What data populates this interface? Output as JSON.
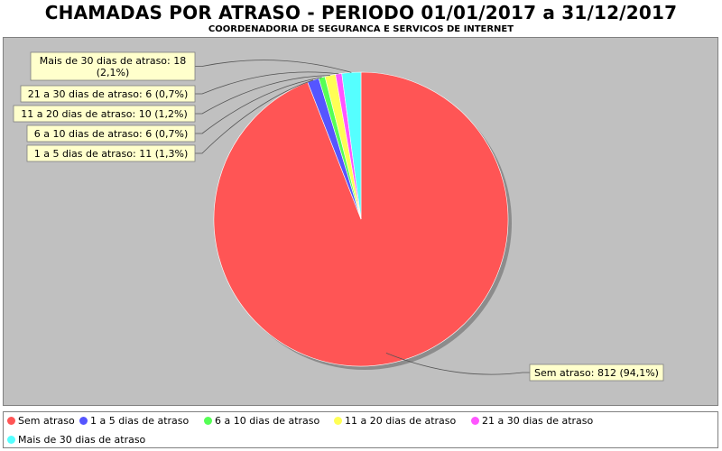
{
  "chart_data": {
    "type": "pie",
    "title": "CHAMADAS POR ATRASO - PERIODO 01/01/2017 a 31/12/2017",
    "subtitle": "COORDENADORIA DE SEGURANCA E SERVICOS DE INTERNET",
    "slices": [
      {
        "name": "Sem atraso",
        "value": 812,
        "percent": "94,1%",
        "color": "#ff5555",
        "label": "Sem atraso: 812 (94,1%)"
      },
      {
        "name": "1 a 5 dias de atraso",
        "value": 11,
        "percent": "1,3%",
        "color": "#5555ff",
        "label": "1 a 5 dias de atraso: 11 (1,3%)"
      },
      {
        "name": "6 a 10 dias de atraso",
        "value": 6,
        "percent": "0,7%",
        "color": "#55ff55",
        "label": "6 a 10 dias de atraso: 6 (0,7%)"
      },
      {
        "name": "11 a 20 dias de atraso",
        "value": 10,
        "percent": "1,2%",
        "color": "#ffff55",
        "label": "11 a 20 dias de atraso: 10 (1,2%)"
      },
      {
        "name": "21 a 30 dias de atraso",
        "value": 6,
        "percent": "0,7%",
        "color": "#ff55ff",
        "label": "21 a 30 dias de atraso: 6 (0,7%)"
      },
      {
        "name": "Mais de 30 dias de atraso",
        "value": 18,
        "percent": "2,1%",
        "color": "#55ffff",
        "label": "Mais de 30 dias de atraso: 18 (2,1%)"
      }
    ],
    "legend_position": "bottom",
    "background": "#c0c0c0"
  }
}
